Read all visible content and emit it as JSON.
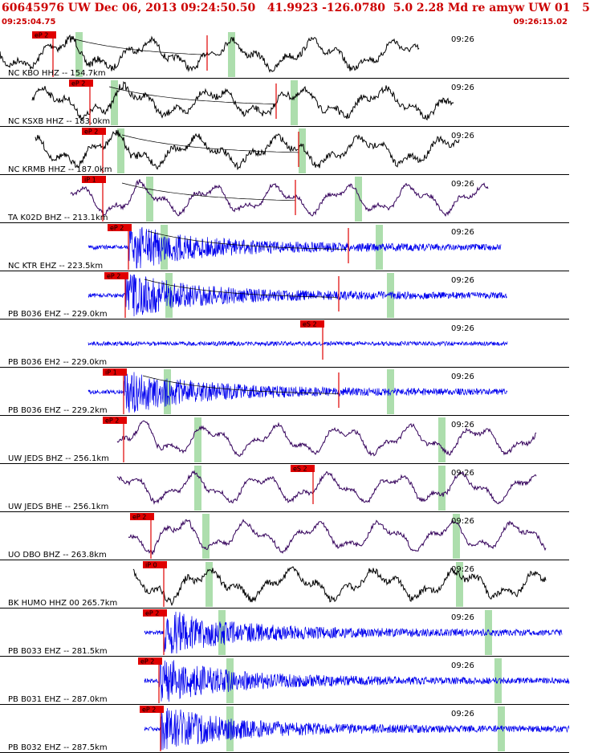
{
  "header": {
    "title": "60645976 UW Dec 06, 2013 09:24:50.50   41.9923 -126.0780  5.0 2.28 Md re amyw UW 01   5",
    "time_start": "09:25:04.75",
    "time_end": "09:26:15.02"
  },
  "colors": {
    "header_red": "#cc0000",
    "pick_red": "#e00000",
    "broadband_trace": "#000000",
    "short_period_trace": "#0000ee",
    "long_period_trace": "#33005a",
    "window_green": "#9fd89f"
  },
  "chart_data": {
    "type": "line",
    "title": "60645976 UW Dec 06, 2013 09:24:50.50   41.9923 -126.0780  5.0 2.28 Md re amyw UW 01   5",
    "x_range": [
      "09:25:04.75",
      "09:26:15.02"
    ],
    "x_tick_label": "09:26",
    "traces": [
      {
        "label": "NC KBO HHZ -- 154.7km",
        "color": "black",
        "pick_label": "eP 2",
        "kind": "bb"
      },
      {
        "label": "NC KSXB HHZ -- 183.0km",
        "color": "black",
        "pick_label": "eP 2",
        "kind": "bb"
      },
      {
        "label": "NC KRMB HHZ -- 187.0km",
        "color": "black",
        "pick_label": "eP 2",
        "kind": "bb"
      },
      {
        "label": "TA K02D BHZ -- 213.1km",
        "color": "purple",
        "pick_label": "iP 1",
        "kind": "lp"
      },
      {
        "label": "NC KTR EHZ -- 223.5km",
        "color": "blue",
        "pick_label": "eP 2",
        "kind": "sp"
      },
      {
        "label": "PB B036 EHZ -- 229.0km",
        "color": "blue",
        "pick_label": "eP 2",
        "kind": "sp"
      },
      {
        "label": "PB B036 EH2 -- 229.0km",
        "color": "blue",
        "pick_label": "eS 2",
        "kind": "sp"
      },
      {
        "label": "PB B036 EHZ -- 229.2km",
        "color": "blue",
        "pick_label": "iP 1",
        "kind": "sp"
      },
      {
        "label": "UW JEDS BHZ -- 256.1km",
        "color": "purple",
        "pick_label": "eP 2",
        "kind": "lp"
      },
      {
        "label": "UW JEDS BHE -- 256.1km",
        "color": "purple",
        "pick_label": "eS 2",
        "kind": "lp"
      },
      {
        "label": "UO DBO BHZ -- 263.8km",
        "color": "purple",
        "pick_label": "eP 2",
        "kind": "lp"
      },
      {
        "label": "BK HUMO HHZ 00 265.7km",
        "color": "black",
        "pick_label": "iP 0",
        "kind": "bb"
      },
      {
        "label": "PB B033 EHZ -- 281.5km",
        "color": "blue",
        "pick_label": "eP 2",
        "kind": "sp"
      },
      {
        "label": "PB B031 EHZ -- 287.0km",
        "color": "blue",
        "pick_label": "eP 2",
        "kind": "sp"
      },
      {
        "label": "PB B032 EHZ -- 287.5km",
        "color": "blue",
        "pick_label": "eP 2",
        "kind": "sp"
      }
    ]
  }
}
